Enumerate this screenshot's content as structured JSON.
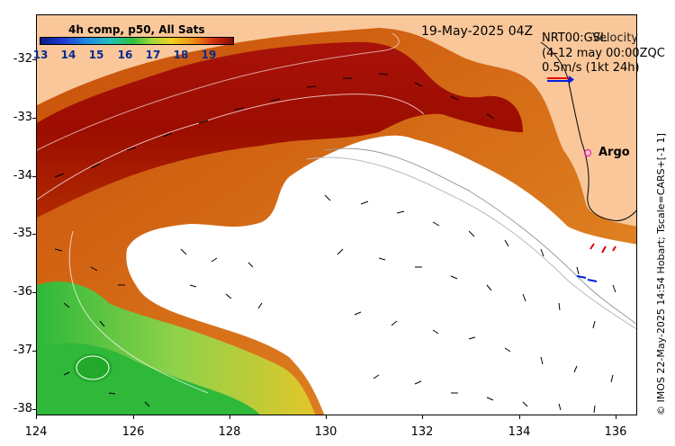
{
  "map": {
    "title": "4h comp, p50, All Sats",
    "date": "19-May-2025 04Z",
    "overlay_line1": "NRT00:GSL",
    "overlay_line1b": "Velocity",
    "overlay_line2": "(4-12 may 00:00ZQC",
    "overlay_line3": "0.5m/s (1kt 24h)",
    "argo_label": "Argo",
    "credit": "© IMOS 22-May-2025 14:54 Hobart; Tscale=CARS+[-1 1]",
    "lat_ticks": [
      "-32",
      "-33",
      "-34",
      "-35",
      "-36",
      "-37",
      "-38"
    ],
    "lon_ticks": [
      "124",
      "126",
      "128",
      "130",
      "132",
      "134",
      "136"
    ],
    "colorbar_ticks": [
      "13",
      "14",
      "15",
      "16",
      "17",
      "18",
      "19"
    ],
    "colors": {
      "land": "#f9c79a",
      "no_data": "#ffffff",
      "warm": "#9c0d00",
      "cool": "#2bbd36",
      "argo": "#e600e6"
    }
  }
}
